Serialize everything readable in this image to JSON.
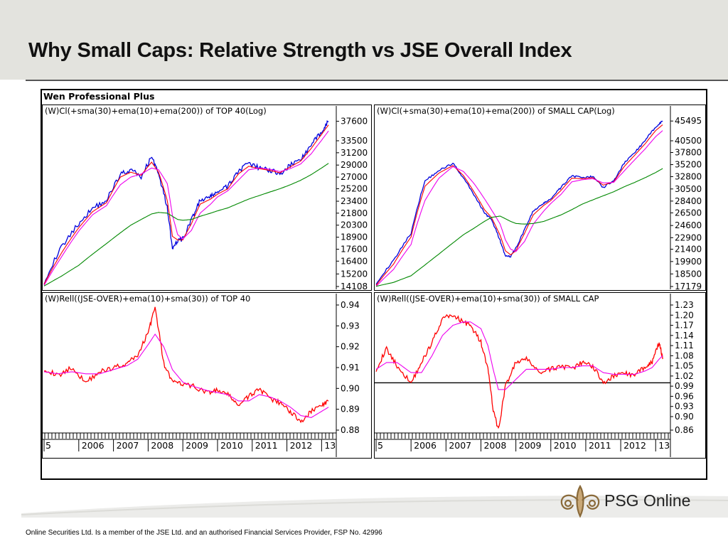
{
  "slide": {
    "title": "Why Small Caps: Relative Strength vs JSE Overall Index",
    "footer": "Online Securities Ltd. Is a member of the JSE Ltd. and an authorised Financial Services Provider, FSP No. 42996",
    "logo_text": "PSG Online",
    "software_label": "Wen Professional Plus"
  },
  "colors": {
    "price": "#0000dd",
    "ema10": "#ff0000",
    "sma30": "#ee00ee",
    "ema200": "#008800",
    "relative": "#ff0000",
    "axis": "#000000",
    "header_band": "#e3e3de"
  },
  "chart_data": [
    {
      "type": "line",
      "title": "(W)Cl(+sma(30)+ema(10)+ema(200)) of TOP 40(Log)",
      "scale": "log",
      "ylim": [
        14108,
        38500
      ],
      "y_ticks": [
        "37600",
        "33500",
        "31200",
        "29000",
        "27000",
        "25200",
        "23400",
        "21800",
        "20300",
        "18900",
        "17600",
        "16400",
        "15200",
        "14108"
      ],
      "x_ticks": [
        "5",
        "2006",
        "2007",
        "2008",
        "2009",
        "2010",
        "2011",
        "2012",
        "13"
      ],
      "x": [
        2005.0,
        2005.5,
        2006.0,
        2006.4,
        2006.8,
        2007.2,
        2007.5,
        2007.8,
        2008.1,
        2008.3,
        2008.55,
        2008.7,
        2008.85,
        2009.0,
        2009.25,
        2009.5,
        2009.8,
        2010.0,
        2010.3,
        2010.6,
        2010.9,
        2011.2,
        2011.5,
        2011.8,
        2012.1,
        2012.4,
        2012.7,
        2013.0,
        2013.2
      ],
      "series": [
        {
          "style": "price",
          "values": [
            14500,
            17800,
            20500,
            22500,
            23500,
            27500,
            28200,
            27000,
            30500,
            27500,
            22500,
            17500,
            18500,
            18700,
            21000,
            23500,
            24000,
            24800,
            25500,
            28000,
            29200,
            28500,
            28200,
            27500,
            29000,
            30000,
            32500,
            35500,
            37600
          ]
        },
        {
          "style": "ema10",
          "values": [
            14300,
            17200,
            20000,
            22000,
            23200,
            27000,
            27800,
            27300,
            29500,
            27800,
            23500,
            19000,
            18600,
            18600,
            20500,
            23000,
            23700,
            24400,
            25200,
            27500,
            28800,
            28400,
            28100,
            27700,
            28700,
            29700,
            32000,
            34800,
            36800
          ]
        },
        {
          "style": "sma30",
          "values": [
            14200,
            16800,
            19600,
            21600,
            22800,
            25800,
            27000,
            27500,
            28500,
            28200,
            26000,
            21500,
            19200,
            18700,
            19700,
            21800,
            23000,
            24000,
            24900,
            26500,
            28200,
            28500,
            28300,
            27900,
            28400,
            29200,
            31000,
            33600,
            35500
          ]
        },
        {
          "style": "ema200",
          "values": [
            14150,
            15000,
            16000,
            17100,
            18200,
            19400,
            20300,
            21000,
            21700,
            21900,
            21800,
            21400,
            21000,
            20900,
            21000,
            21400,
            21800,
            22100,
            22500,
            23100,
            23700,
            24200,
            24700,
            25200,
            25800,
            26500,
            27400,
            28500,
            29300
          ]
        }
      ]
    },
    {
      "type": "line",
      "title": "(W)Cl(+sma(30)+ema(10)+ema(200)) of SMALL CAP(Log)",
      "scale": "log",
      "ylim": [
        17179,
        46500
      ],
      "y_ticks": [
        "45495",
        "40500",
        "37800",
        "35200",
        "32800",
        "30500",
        "28400",
        "26500",
        "24600",
        "22900",
        "21400",
        "19900",
        "18500",
        "17179"
      ],
      "x_ticks": [
        "5",
        "2006",
        "2007",
        "2008",
        "2009",
        "2010",
        "2011",
        "2012",
        "13"
      ],
      "x": [
        2005.0,
        2005.5,
        2006.0,
        2006.4,
        2006.8,
        2007.2,
        2007.5,
        2007.8,
        2008.1,
        2008.3,
        2008.55,
        2008.7,
        2008.85,
        2009.0,
        2009.25,
        2009.5,
        2009.8,
        2010.0,
        2010.3,
        2010.6,
        2010.9,
        2011.2,
        2011.5,
        2011.8,
        2012.1,
        2012.4,
        2012.7,
        2013.0,
        2013.2
      ],
      "series": [
        {
          "style": "price",
          "values": [
            17500,
            20000,
            23500,
            32000,
            34000,
            35500,
            32500,
            29500,
            26500,
            25500,
            22500,
            20500,
            20500,
            21500,
            24000,
            26800,
            28000,
            28800,
            30800,
            33000,
            32500,
            32800,
            30800,
            32000,
            35500,
            37800,
            40500,
            44000,
            45495
          ]
        },
        {
          "style": "ema10",
          "values": [
            17300,
            19600,
            23000,
            31000,
            33500,
            35000,
            33000,
            30000,
            27000,
            25800,
            23200,
            21200,
            20700,
            21200,
            23500,
            26200,
            27700,
            28500,
            30300,
            32500,
            32400,
            32600,
            31200,
            31800,
            34800,
            37200,
            39800,
            43000,
            44500
          ]
        },
        {
          "style": "sma30",
          "values": [
            17200,
            19000,
            22000,
            28500,
            32500,
            34800,
            33800,
            31500,
            28800,
            27000,
            24800,
            22600,
            21400,
            21100,
            22400,
            24800,
            26800,
            28000,
            29600,
            31800,
            32200,
            32400,
            31600,
            31700,
            33900,
            36200,
            38600,
            41500,
            43000
          ]
        },
        {
          "style": "ema200",
          "values": [
            17200,
            17600,
            18300,
            19500,
            20800,
            22200,
            23300,
            24200,
            25200,
            25800,
            26000,
            25600,
            25200,
            24900,
            24800,
            24900,
            25200,
            25600,
            26200,
            27000,
            27900,
            28600,
            29300,
            30000,
            30900,
            31700,
            32600,
            33600,
            34400
          ]
        }
      ]
    },
    {
      "type": "line",
      "title": "(W)Rell((JSE-OVER)+ema(10)+sma(30)) of TOP 40",
      "scale": "linear",
      "ylim": [
        0.88,
        0.94
      ],
      "y_ticks": [
        "0.94",
        "0.93",
        "0.92",
        "0.91",
        "0.90",
        "0.89",
        "0.88"
      ],
      "x_ticks": [
        "5",
        "2006",
        "2007",
        "2008",
        "2009",
        "2010",
        "2011",
        "2012",
        "13"
      ],
      "x": [
        2005.0,
        2005.4,
        2005.8,
        2006.2,
        2006.6,
        2007.0,
        2007.4,
        2007.7,
        2008.0,
        2008.2,
        2008.45,
        2008.7,
        2009.0,
        2009.3,
        2009.7,
        2010.0,
        2010.3,
        2010.6,
        2010.9,
        2011.2,
        2011.5,
        2011.8,
        2012.1,
        2012.4,
        2012.7,
        2013.0,
        2013.2
      ],
      "series": [
        {
          "style": "relative",
          "values": [
            0.9095,
            0.906,
            0.91,
            0.903,
            0.908,
            0.91,
            0.912,
            0.916,
            0.927,
            0.939,
            0.912,
            0.903,
            0.902,
            0.901,
            0.898,
            0.899,
            0.897,
            0.892,
            0.896,
            0.9,
            0.895,
            0.893,
            0.889,
            0.884,
            0.889,
            0.892,
            0.894
          ]
        },
        {
          "style": "sma30",
          "values": [
            0.908,
            0.907,
            0.908,
            0.907,
            0.907,
            0.909,
            0.911,
            0.914,
            0.921,
            0.926,
            0.92,
            0.909,
            0.903,
            0.901,
            0.899,
            0.898,
            0.897,
            0.894,
            0.894,
            0.897,
            0.896,
            0.894,
            0.891,
            0.887,
            0.886,
            0.889,
            0.891
          ]
        }
      ]
    },
    {
      "type": "line",
      "title": "(W)Rell((JSE-OVER)+ema(10)+sma(30)) of SMALL CAP",
      "scale": "linear",
      "ylim": [
        0.86,
        1.23
      ],
      "y_ticks": [
        "1.23",
        "1.20",
        "1.17",
        "1.14",
        "1.11",
        "1.08",
        "1.05",
        "1.02",
        "0.99",
        "0.96",
        "0.93",
        "0.90",
        "0.86"
      ],
      "reference_line": 1.0,
      "x_ticks": [
        "5",
        "2006",
        "2007",
        "2008",
        "2009",
        "2010",
        "2011",
        "2012",
        "13"
      ],
      "x": [
        2005.0,
        2005.3,
        2005.6,
        2006.0,
        2006.3,
        2006.6,
        2006.9,
        2007.2,
        2007.5,
        2007.7,
        2008.0,
        2008.2,
        2008.35,
        2008.5,
        2008.7,
        2009.0,
        2009.3,
        2009.7,
        2010.0,
        2010.3,
        2010.6,
        2010.9,
        2011.2,
        2011.5,
        2011.8,
        2012.1,
        2012.4,
        2012.7,
        2012.9,
        2013.1,
        2013.2
      ],
      "series": [
        {
          "style": "relative",
          "values": [
            1.04,
            1.1,
            1.05,
            1.0,
            1.06,
            1.12,
            1.19,
            1.2,
            1.18,
            1.17,
            1.12,
            1.04,
            0.92,
            0.86,
            0.99,
            1.06,
            1.07,
            1.03,
            1.04,
            1.05,
            1.04,
            1.06,
            1.05,
            1.0,
            1.02,
            1.03,
            1.02,
            1.05,
            1.06,
            1.12,
            1.07
          ]
        },
        {
          "style": "sma30",
          "values": [
            1.04,
            1.06,
            1.06,
            1.03,
            1.03,
            1.08,
            1.14,
            1.17,
            1.18,
            1.18,
            1.16,
            1.11,
            1.04,
            0.98,
            0.98,
            1.01,
            1.04,
            1.04,
            1.04,
            1.045,
            1.045,
            1.05,
            1.05,
            1.03,
            1.025,
            1.025,
            1.025,
            1.035,
            1.045,
            1.07,
            1.08
          ]
        }
      ]
    }
  ]
}
